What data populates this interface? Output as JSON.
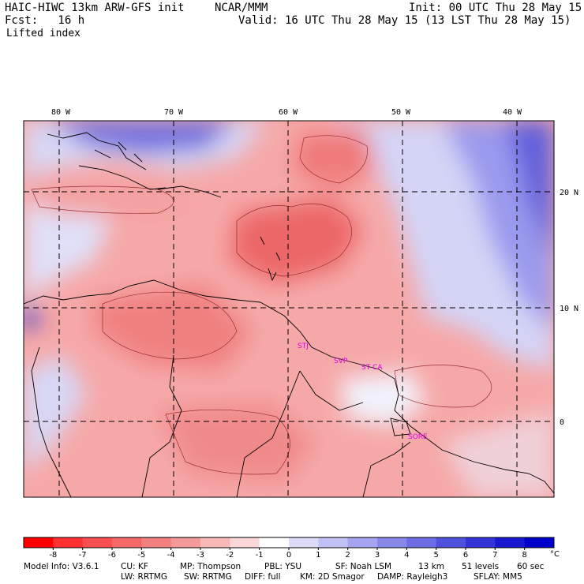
{
  "header": {
    "model": "HAIC-HIWC 13km ARW-GFS init",
    "org": "NCAR/MMM",
    "init": "Init: 00 UTC Thu 28 May 15",
    "fcst": "Fcst:   16 h",
    "valid": "Valid: 16 UTC Thu 28 May 15 (13 LST Thu 28 May 15)",
    "field": "Lifted index"
  },
  "axes": {
    "lon_labels": [
      "80 W",
      "70 W",
      "60 W",
      "50 W",
      "40 W"
    ],
    "lat_labels": [
      "20 N",
      "10 N",
      "0"
    ]
  },
  "stations": [
    "STJ",
    "SVP",
    "ST CA",
    "SORE"
  ],
  "colorbar": {
    "ticks": [
      "-8",
      "-7",
      "-6",
      "-5",
      "-4",
      "-3",
      "-2",
      "-1",
      "0",
      "1",
      "2",
      "3",
      "4",
      "5",
      "6",
      "7",
      "8"
    ],
    "unit": "°C",
    "colors": [
      "#ff0000",
      "#ff3030",
      "#f85050",
      "#f56868",
      "#f38080",
      "#f59a9a",
      "#f8b8b8",
      "#fbd8d8",
      "#ffffff",
      "#dcdcf8",
      "#c0c0f4",
      "#a4a4f0",
      "#8888ea",
      "#6c6ce4",
      "#5050de",
      "#3434d8",
      "#1818d0",
      "#0000cc"
    ]
  },
  "model_info": {
    "line1": [
      "Model Info: V3.6.1",
      "CU: KF",
      "MP: Thompson",
      "PBL: YSU",
      "SF: Noah LSM",
      "13 km",
      "51 levels",
      "60 sec"
    ],
    "line2": [
      "LW: RRTMG",
      "SW: RRTMG",
      "DIFF: full",
      "KM: 2D Smagor",
      "DAMP: Rayleigh3",
      "SFLAY: MM5"
    ]
  }
}
